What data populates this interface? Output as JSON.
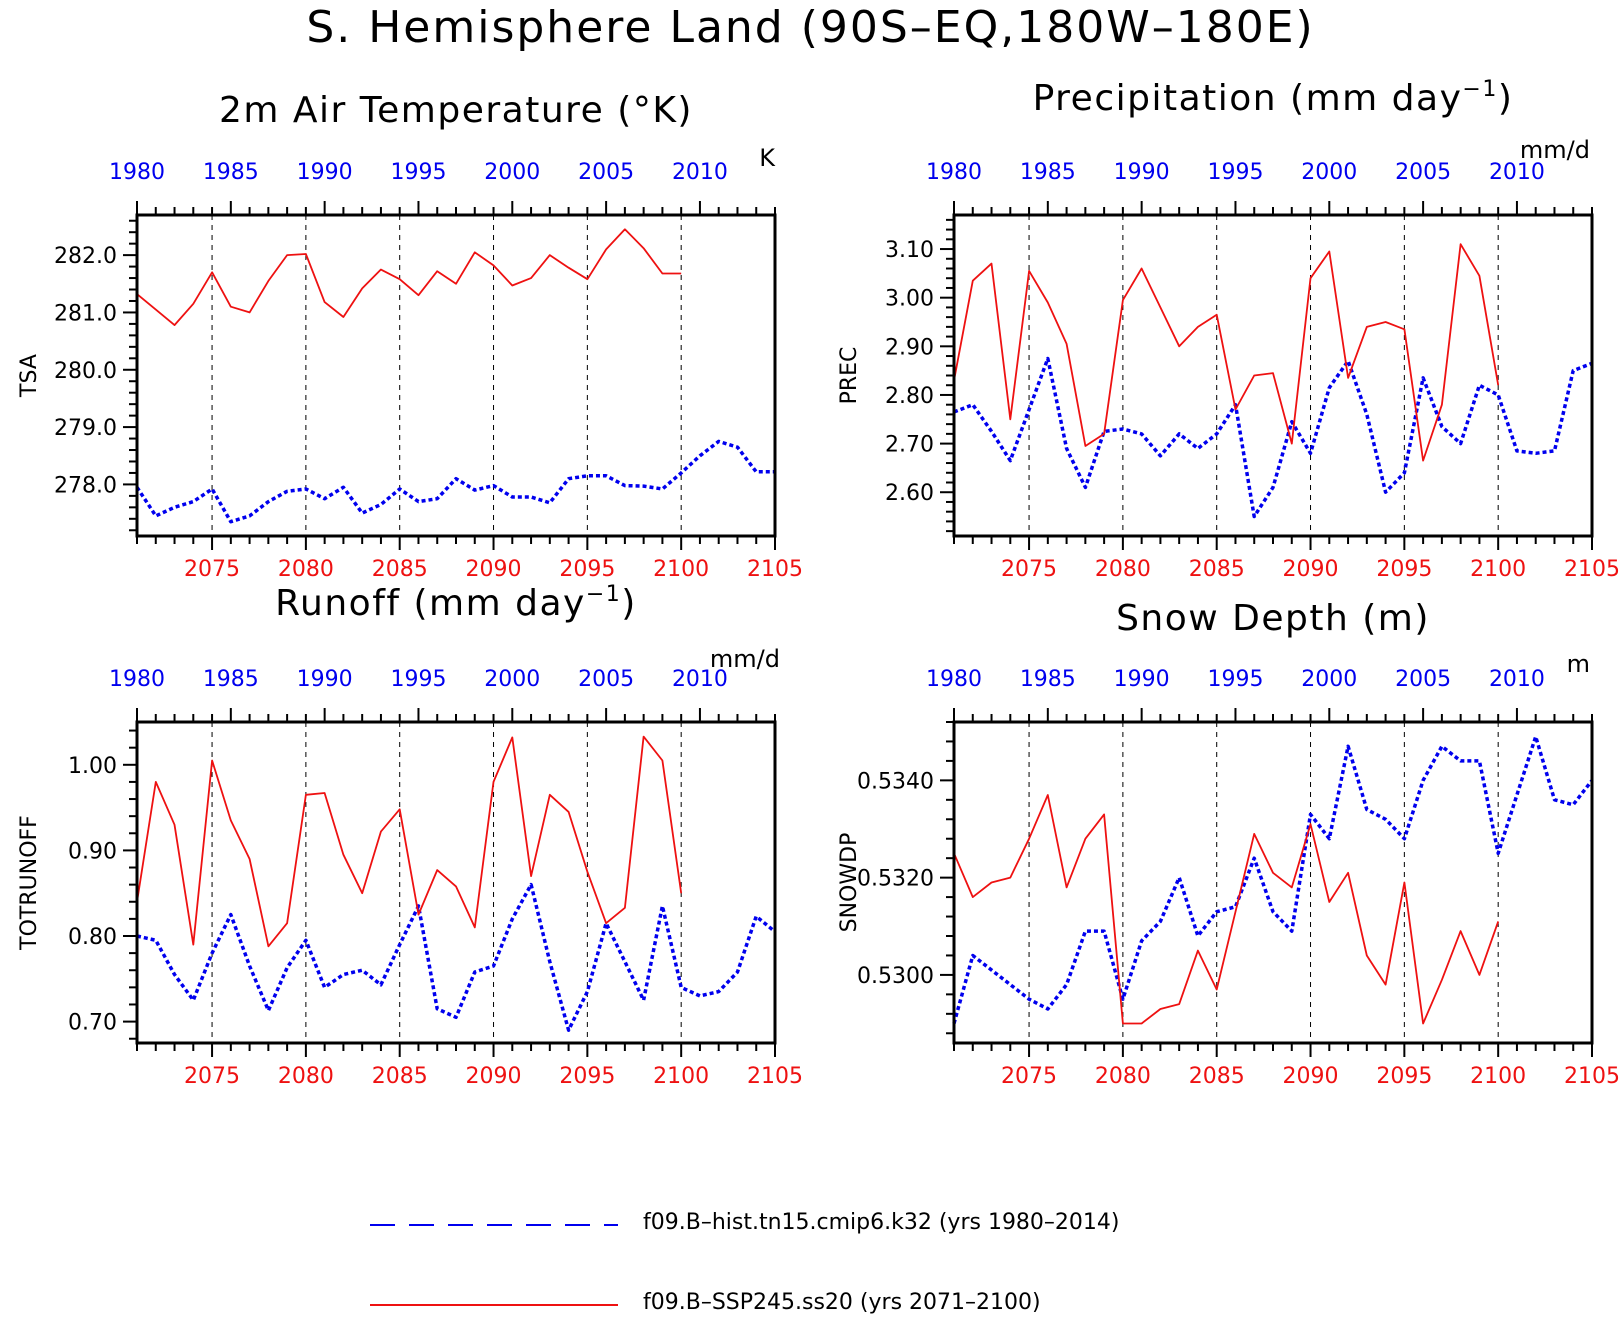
{
  "title": "S. Hemisphere Land (90S–EQ,180W–180E)",
  "colors": {
    "hist": "#0000ee",
    "ssp": "#ee1111",
    "axis": "#000000"
  },
  "legend": [
    {
      "label": "f09.B–hist.tn15.cmip6.k32 (yrs 1980–2014)",
      "color": "#0000ee",
      "style": "dashed"
    },
    {
      "label": "f09.B–SSP245.ss20 (yrs 2071–2100)",
      "color": "#ee1111",
      "style": "solid"
    }
  ],
  "chart_data": [
    {
      "type": "line",
      "title": "2m Air Temperature (°K)",
      "ylabel": "TSA",
      "units": "K",
      "ylim": [
        277.1,
        282.7
      ],
      "yticks": [
        278.0,
        279.0,
        280.0,
        281.0,
        282.0
      ],
      "yticklabels": [
        "278.0",
        "279.0",
        "280.0",
        "281.0",
        "282.0"
      ],
      "top_axis": {
        "xlim": [
          1980,
          2014
        ],
        "ticks": [
          1980,
          1985,
          1990,
          1995,
          2000,
          2005,
          2010
        ]
      },
      "bottom_axis": {
        "xlim": [
          2071,
          2105
        ],
        "ticks": [
          2075,
          2080,
          2085,
          2090,
          2095,
          2100,
          2105
        ]
      },
      "series": [
        {
          "name": "f09.B–hist.tn15.cmip6.k32",
          "axis": "top",
          "x_start": 1980,
          "values": [
            277.95,
            277.45,
            277.6,
            277.7,
            277.92,
            277.35,
            277.45,
            277.7,
            277.88,
            277.92,
            277.75,
            277.95,
            277.5,
            277.65,
            277.92,
            277.7,
            277.75,
            278.1,
            277.9,
            277.98,
            277.78,
            277.78,
            277.68,
            278.1,
            278.15,
            278.15,
            277.98,
            277.97,
            277.92,
            278.2,
            278.5,
            278.75,
            278.65,
            278.22,
            278.22
          ]
        },
        {
          "name": "f09.B–SSP245.ss20",
          "axis": "bottom",
          "x_start": 2071,
          "values": [
            281.32,
            281.05,
            280.78,
            281.15,
            281.7,
            281.1,
            281.0,
            281.55,
            282.0,
            282.02,
            281.18,
            280.92,
            281.42,
            281.75,
            281.58,
            281.3,
            281.72,
            281.5,
            282.05,
            281.82,
            281.47,
            281.6,
            282.0,
            281.78,
            281.58,
            282.1,
            282.45,
            282.12,
            281.68,
            281.68
          ]
        }
      ]
    },
    {
      "type": "line",
      "title": "Precipitation (mm day",
      "title_sup": "−1",
      "title_tail": ")",
      "ylabel": "PREC",
      "units": "mm/d",
      "ylim": [
        2.51,
        3.17
      ],
      "yticks": [
        2.6,
        2.7,
        2.8,
        2.9,
        3.0,
        3.1
      ],
      "yticklabels": [
        "2.60",
        "2.70",
        "2.80",
        "2.90",
        "3.00",
        "3.10"
      ],
      "top_axis": {
        "xlim": [
          1980,
          2014
        ],
        "ticks": [
          1980,
          1985,
          1990,
          1995,
          2000,
          2005,
          2010
        ]
      },
      "bottom_axis": {
        "xlim": [
          2071,
          2105
        ],
        "ticks": [
          2075,
          2080,
          2085,
          2090,
          2095,
          2100,
          2105
        ]
      },
      "series": [
        {
          "name": "f09.B–hist.tn15.cmip6.k32",
          "axis": "top",
          "x_start": 1980,
          "values": [
            2.765,
            2.78,
            2.725,
            2.665,
            2.77,
            2.875,
            2.69,
            2.61,
            2.725,
            2.73,
            2.72,
            2.675,
            2.72,
            2.69,
            2.72,
            2.78,
            2.55,
            2.61,
            2.745,
            2.68,
            2.815,
            2.87,
            2.76,
            2.6,
            2.64,
            2.835,
            2.735,
            2.7,
            2.82,
            2.8,
            2.685,
            2.68,
            2.685,
            2.85,
            2.865
          ]
        },
        {
          "name": "f09.B–SSP245.ss20",
          "axis": "bottom",
          "x_start": 2071,
          "values": [
            2.83,
            3.035,
            3.07,
            2.75,
            3.055,
            2.99,
            2.905,
            2.695,
            2.72,
            2.995,
            3.06,
            2.98,
            2.9,
            2.94,
            2.965,
            2.77,
            2.84,
            2.845,
            2.7,
            3.04,
            3.095,
            2.835,
            2.94,
            2.95,
            2.935,
            2.665,
            2.78,
            3.11,
            3.045,
            2.82
          ]
        }
      ]
    },
    {
      "type": "line",
      "title": "Runoff (mm day",
      "title_sup": "−1",
      "title_tail": ")",
      "ylabel": "TOTRUNOFF",
      "units": "mm/d",
      "ylim": [
        0.675,
        1.05
      ],
      "yticks": [
        0.7,
        0.8,
        0.9,
        1.0
      ],
      "yticklabels": [
        "0.70",
        "0.80",
        "0.90",
        "1.00"
      ],
      "top_axis": {
        "xlim": [
          1980,
          2014
        ],
        "ticks": [
          1980,
          1985,
          1990,
          1995,
          2000,
          2005,
          2010
        ]
      },
      "bottom_axis": {
        "xlim": [
          2071,
          2105
        ],
        "ticks": [
          2075,
          2080,
          2085,
          2090,
          2095,
          2100,
          2105
        ]
      },
      "series": [
        {
          "name": "f09.B–hist.tn15.cmip6.k32",
          "axis": "top",
          "x_start": 1980,
          "values": [
            0.8,
            0.795,
            0.755,
            0.725,
            0.78,
            0.825,
            0.765,
            0.713,
            0.763,
            0.795,
            0.74,
            0.755,
            0.76,
            0.743,
            0.79,
            0.835,
            0.715,
            0.705,
            0.758,
            0.765,
            0.82,
            0.86,
            0.77,
            0.69,
            0.735,
            0.815,
            0.77,
            0.725,
            0.835,
            0.74,
            0.73,
            0.735,
            0.758,
            0.823,
            0.805
          ]
        },
        {
          "name": "f09.B–SSP245.ss20",
          "axis": "bottom",
          "x_start": 2071,
          "values": [
            0.84,
            0.98,
            0.93,
            0.79,
            1.005,
            0.935,
            0.89,
            0.788,
            0.815,
            0.965,
            0.967,
            0.895,
            0.85,
            0.922,
            0.948,
            0.825,
            0.877,
            0.858,
            0.81,
            0.98,
            1.032,
            0.87,
            0.965,
            0.945,
            0.875,
            0.815,
            0.833,
            1.033,
            1.005,
            0.85
          ]
        }
      ]
    },
    {
      "type": "line",
      "title": "Snow Depth (m)",
      "ylabel": "SNOWDP",
      "units": "m",
      "ylim": [
        0.5286,
        0.5352
      ],
      "yticks": [
        0.53,
        0.532,
        0.534
      ],
      "yticklabels": [
        "0.5300",
        "0.5320",
        "0.5340"
      ],
      "top_axis": {
        "xlim": [
          1980,
          2014
        ],
        "ticks": [
          1980,
          1985,
          1990,
          1995,
          2000,
          2005,
          2010
        ]
      },
      "bottom_axis": {
        "xlim": [
          2071,
          2105
        ],
        "ticks": [
          2075,
          2080,
          2085,
          2090,
          2095,
          2100,
          2105
        ]
      },
      "series": [
        {
          "name": "f09.B–hist.tn15.cmip6.k32",
          "axis": "top",
          "x_start": 1980,
          "values": [
            0.529,
            0.5304,
            0.5301,
            0.5298,
            0.5295,
            0.5293,
            0.5298,
            0.5309,
            0.5309,
            0.5295,
            0.5307,
            0.5311,
            0.532,
            0.5308,
            0.5313,
            0.5314,
            0.5324,
            0.5313,
            0.5309,
            0.5333,
            0.5328,
            0.5347,
            0.5334,
            0.5332,
            0.5328,
            0.534,
            0.5347,
            0.5344,
            0.5344,
            0.5325,
            0.5337,
            0.5349,
            0.5336,
            0.5335,
            0.534
          ]
        },
        {
          "name": "f09.B–SSP245.ss20",
          "axis": "bottom",
          "x_start": 2071,
          "values": [
            0.5325,
            0.5316,
            0.5319,
            0.532,
            0.5328,
            0.5337,
            0.5318,
            0.5328,
            0.5333,
            0.529,
            0.529,
            0.5293,
            0.5294,
            0.5305,
            0.5297,
            0.5313,
            0.5329,
            0.5321,
            0.5318,
            0.5331,
            0.5315,
            0.5321,
            0.5304,
            0.5298,
            0.5319,
            0.529,
            0.5299,
            0.5309,
            0.53,
            0.5311
          ]
        }
      ]
    }
  ]
}
